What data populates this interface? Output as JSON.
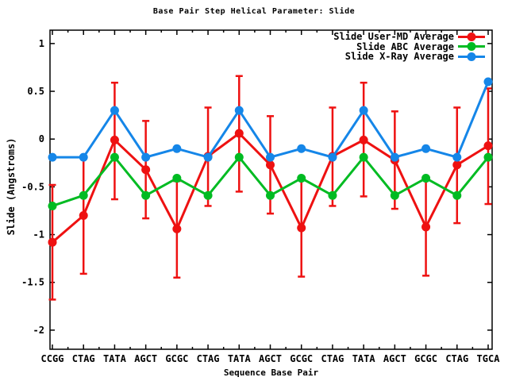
{
  "chart_data": {
    "type": "line",
    "title": "Base Pair Step Helical Parameter: Slide",
    "xlabel": "Sequence Base Pair",
    "ylabel": "Slide (Angstroms)",
    "categories": [
      "CCGG",
      "CTAG",
      "TATA",
      "AGCT",
      "GCGC",
      "CTAG",
      "TATA",
      "AGCT",
      "GCGC",
      "CTAG",
      "TATA",
      "AGCT",
      "GCGC",
      "CTAG",
      "TGCA"
    ],
    "ytick_labels": [
      "1",
      "0.5",
      "0",
      "-0.5",
      "-1",
      "-1.5",
      "-2"
    ],
    "ytick_values": [
      1,
      0.5,
      0,
      -0.5,
      -1,
      -1.5,
      -2
    ],
    "ylim": [
      -2.2,
      1.14
    ],
    "grid": false,
    "legend_position": "top-right-inside",
    "background_color": "#ffffff",
    "axis_color": "#000000",
    "series": [
      {
        "name": "Slide User-MD Average",
        "color": "#ee1111",
        "marker": "circle",
        "has_error_bars": true,
        "values": [
          -1.08,
          -0.8,
          -0.01,
          -0.32,
          -0.94,
          -0.18,
          0.06,
          -0.27,
          -0.93,
          -0.18,
          -0.01,
          -0.22,
          -0.92,
          -0.27,
          -0.07
        ],
        "error_low": [
          -1.68,
          -1.41,
          -0.63,
          -0.83,
          -1.45,
          -0.7,
          -0.55,
          -0.78,
          -1.44,
          -0.7,
          -0.6,
          -0.73,
          -1.43,
          -0.88,
          -0.68
        ],
        "error_high": [
          -0.48,
          -0.2,
          0.59,
          0.19,
          -0.44,
          0.33,
          0.66,
          0.24,
          -0.43,
          0.33,
          0.59,
          0.29,
          -0.42,
          0.33,
          0.53
        ]
      },
      {
        "name": "Slide ABC Average",
        "color": "#00bb22",
        "marker": "circle",
        "has_error_bars": false,
        "values": [
          -0.7,
          -0.59,
          -0.19,
          -0.59,
          -0.41,
          -0.59,
          -0.19,
          -0.59,
          -0.41,
          -0.59,
          -0.19,
          -0.59,
          -0.41,
          -0.59,
          -0.19
        ]
      },
      {
        "name": "Slide X-Ray Average",
        "color": "#1586e8",
        "marker": "circle",
        "has_error_bars": false,
        "values": [
          -0.19,
          -0.19,
          0.3,
          -0.19,
          -0.1,
          -0.19,
          0.3,
          -0.19,
          -0.1,
          -0.19,
          0.3,
          -0.19,
          -0.1,
          -0.19,
          0.6
        ]
      }
    ]
  }
}
